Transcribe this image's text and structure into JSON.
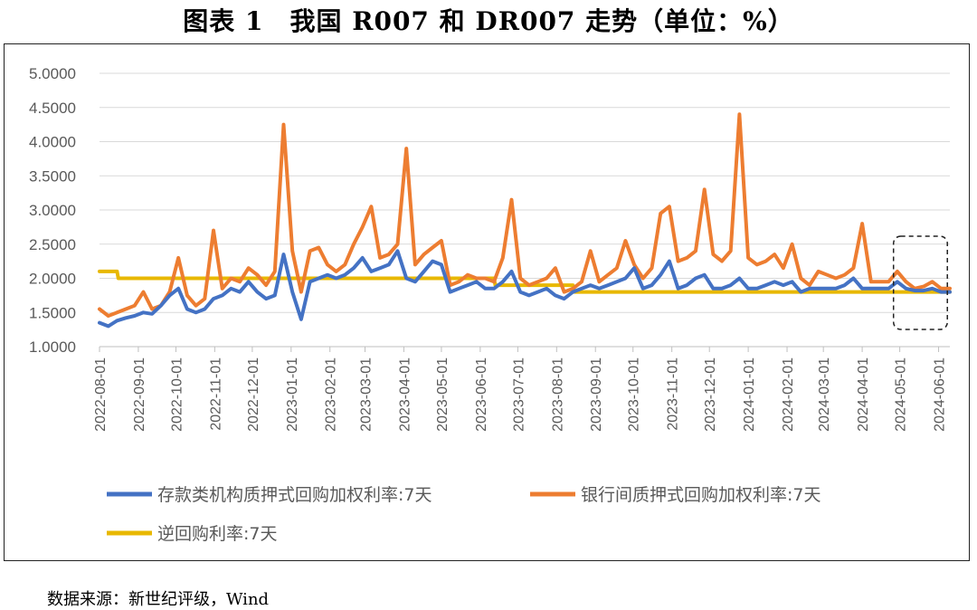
{
  "title": "图表 1　我国 R007 和 DR007 走势（单位：%）",
  "source": "数据来源：新世纪评级，Wind",
  "chart_data": {
    "type": "line",
    "ylim": [
      1.0,
      5.0
    ],
    "yticks": [
      "5.0000",
      "4.5000",
      "4.0000",
      "3.5000",
      "3.0000",
      "2.5000",
      "2.0000",
      "1.5000",
      "1.0000"
    ],
    "xticks": [
      "2022-08-01",
      "2022-09-01",
      "2022-10-01",
      "2022-11-01",
      "2022-12-01",
      "2023-01-01",
      "2023-02-01",
      "2023-03-01",
      "2023-04-01",
      "2023-05-01",
      "2023-06-01",
      "2023-07-01",
      "2023-08-01",
      "2023-09-01",
      "2023-10-01",
      "2023-11-01",
      "2023-12-01",
      "2024-01-01",
      "2024-02-01",
      "2024-03-01",
      "2024-04-01",
      "2024-05-01",
      "2024-06-01"
    ],
    "grid": "horizontal",
    "legend_position": "bottom",
    "annotation": "dashed box around 2024-05 to 2024-06",
    "series": [
      {
        "name": "存款类机构质押式回购加权利率:7天",
        "color": "#4472C4",
        "points": [
          [
            "2022-08-01",
            1.35
          ],
          [
            "2022-08-08",
            1.3
          ],
          [
            "2022-08-15",
            1.38
          ],
          [
            "2022-08-22",
            1.42
          ],
          [
            "2022-08-29",
            1.45
          ],
          [
            "2022-09-05",
            1.5
          ],
          [
            "2022-09-12",
            1.48
          ],
          [
            "2022-09-19",
            1.6
          ],
          [
            "2022-09-26",
            1.75
          ],
          [
            "2022-10-03",
            1.85
          ],
          [
            "2022-10-10",
            1.55
          ],
          [
            "2022-10-17",
            1.5
          ],
          [
            "2022-10-24",
            1.55
          ],
          [
            "2022-10-31",
            1.7
          ],
          [
            "2022-11-07",
            1.75
          ],
          [
            "2022-11-14",
            1.85
          ],
          [
            "2022-11-21",
            1.8
          ],
          [
            "2022-11-28",
            1.95
          ],
          [
            "2022-12-05",
            1.8
          ],
          [
            "2022-12-12",
            1.7
          ],
          [
            "2022-12-19",
            1.75
          ],
          [
            "2022-12-26",
            2.35
          ],
          [
            "2023-01-02",
            1.8
          ],
          [
            "2023-01-09",
            1.4
          ],
          [
            "2023-01-16",
            1.95
          ],
          [
            "2023-01-23",
            2.0
          ],
          [
            "2023-01-30",
            2.05
          ],
          [
            "2023-02-06",
            2.0
          ],
          [
            "2023-02-13",
            2.05
          ],
          [
            "2023-02-20",
            2.15
          ],
          [
            "2023-02-27",
            2.3
          ],
          [
            "2023-03-06",
            2.1
          ],
          [
            "2023-03-13",
            2.15
          ],
          [
            "2023-03-20",
            2.2
          ],
          [
            "2023-03-27",
            2.4
          ],
          [
            "2023-04-03",
            2.0
          ],
          [
            "2023-04-10",
            1.95
          ],
          [
            "2023-04-17",
            2.1
          ],
          [
            "2023-04-24",
            2.25
          ],
          [
            "2023-05-01",
            2.2
          ],
          [
            "2023-05-08",
            1.8
          ],
          [
            "2023-05-15",
            1.85
          ],
          [
            "2023-05-22",
            1.9
          ],
          [
            "2023-05-29",
            1.95
          ],
          [
            "2023-06-05",
            1.85
          ],
          [
            "2023-06-12",
            1.85
          ],
          [
            "2023-06-19",
            1.95
          ],
          [
            "2023-06-26",
            2.1
          ],
          [
            "2023-07-03",
            1.8
          ],
          [
            "2023-07-10",
            1.75
          ],
          [
            "2023-07-17",
            1.8
          ],
          [
            "2023-07-24",
            1.85
          ],
          [
            "2023-07-31",
            1.75
          ],
          [
            "2023-08-07",
            1.7
          ],
          [
            "2023-08-14",
            1.8
          ],
          [
            "2023-08-21",
            1.85
          ],
          [
            "2023-08-28",
            1.9
          ],
          [
            "2023-09-04",
            1.85
          ],
          [
            "2023-09-11",
            1.9
          ],
          [
            "2023-09-18",
            1.95
          ],
          [
            "2023-09-25",
            2.0
          ],
          [
            "2023-10-02",
            2.15
          ],
          [
            "2023-10-09",
            1.85
          ],
          [
            "2023-10-16",
            1.9
          ],
          [
            "2023-10-23",
            2.05
          ],
          [
            "2023-10-30",
            2.25
          ],
          [
            "2023-11-06",
            1.85
          ],
          [
            "2023-11-13",
            1.9
          ],
          [
            "2023-11-20",
            2.0
          ],
          [
            "2023-11-27",
            2.05
          ],
          [
            "2023-12-04",
            1.85
          ],
          [
            "2023-12-11",
            1.85
          ],
          [
            "2023-12-18",
            1.9
          ],
          [
            "2023-12-25",
            2.0
          ],
          [
            "2024-01-01",
            1.85
          ],
          [
            "2024-01-08",
            1.85
          ],
          [
            "2024-01-15",
            1.9
          ],
          [
            "2024-01-22",
            1.95
          ],
          [
            "2024-01-29",
            1.9
          ],
          [
            "2024-02-05",
            1.95
          ],
          [
            "2024-02-12",
            1.8
          ],
          [
            "2024-02-19",
            1.85
          ],
          [
            "2024-02-26",
            1.85
          ],
          [
            "2024-03-04",
            1.85
          ],
          [
            "2024-03-11",
            1.85
          ],
          [
            "2024-03-18",
            1.9
          ],
          [
            "2024-03-25",
            2.0
          ],
          [
            "2024-04-01",
            1.85
          ],
          [
            "2024-04-08",
            1.85
          ],
          [
            "2024-04-15",
            1.85
          ],
          [
            "2024-04-22",
            1.85
          ],
          [
            "2024-04-29",
            1.95
          ],
          [
            "2024-05-06",
            1.85
          ],
          [
            "2024-05-13",
            1.82
          ],
          [
            "2024-05-20",
            1.82
          ],
          [
            "2024-05-27",
            1.85
          ],
          [
            "2024-06-03",
            1.8
          ],
          [
            "2024-06-10",
            1.8
          ]
        ]
      },
      {
        "name": "银行间质押式回购加权利率:7天",
        "color": "#ED7D31",
        "points": [
          [
            "2022-08-01",
            1.55
          ],
          [
            "2022-08-08",
            1.45
          ],
          [
            "2022-08-15",
            1.5
          ],
          [
            "2022-08-22",
            1.55
          ],
          [
            "2022-08-29",
            1.6
          ],
          [
            "2022-09-05",
            1.8
          ],
          [
            "2022-09-12",
            1.55
          ],
          [
            "2022-09-19",
            1.6
          ],
          [
            "2022-09-26",
            1.8
          ],
          [
            "2022-10-03",
            2.3
          ],
          [
            "2022-10-10",
            1.75
          ],
          [
            "2022-10-17",
            1.6
          ],
          [
            "2022-10-24",
            1.7
          ],
          [
            "2022-10-31",
            2.7
          ],
          [
            "2022-11-07",
            1.85
          ],
          [
            "2022-11-14",
            2.0
          ],
          [
            "2022-11-21",
            1.95
          ],
          [
            "2022-11-28",
            2.15
          ],
          [
            "2022-12-05",
            2.05
          ],
          [
            "2022-12-12",
            1.9
          ],
          [
            "2022-12-19",
            2.1
          ],
          [
            "2022-12-26",
            4.25
          ],
          [
            "2023-01-02",
            2.4
          ],
          [
            "2023-01-09",
            1.8
          ],
          [
            "2023-01-16",
            2.4
          ],
          [
            "2023-01-23",
            2.45
          ],
          [
            "2023-01-30",
            2.2
          ],
          [
            "2023-02-06",
            2.1
          ],
          [
            "2023-02-13",
            2.2
          ],
          [
            "2023-02-20",
            2.5
          ],
          [
            "2023-02-27",
            2.75
          ],
          [
            "2023-03-06",
            3.05
          ],
          [
            "2023-03-13",
            2.3
          ],
          [
            "2023-03-20",
            2.35
          ],
          [
            "2023-03-27",
            2.5
          ],
          [
            "2023-04-03",
            3.9
          ],
          [
            "2023-04-10",
            2.2
          ],
          [
            "2023-04-17",
            2.35
          ],
          [
            "2023-04-24",
            2.45
          ],
          [
            "2023-05-01",
            2.55
          ],
          [
            "2023-05-08",
            1.9
          ],
          [
            "2023-05-15",
            1.95
          ],
          [
            "2023-05-22",
            2.05
          ],
          [
            "2023-05-29",
            2.0
          ],
          [
            "2023-06-05",
            2.0
          ],
          [
            "2023-06-12",
            1.95
          ],
          [
            "2023-06-19",
            2.3
          ],
          [
            "2023-06-26",
            3.15
          ],
          [
            "2023-07-03",
            2.0
          ],
          [
            "2023-07-10",
            1.9
          ],
          [
            "2023-07-17",
            1.95
          ],
          [
            "2023-07-24",
            2.0
          ],
          [
            "2023-07-31",
            2.15
          ],
          [
            "2023-08-07",
            1.8
          ],
          [
            "2023-08-14",
            1.85
          ],
          [
            "2023-08-21",
            1.95
          ],
          [
            "2023-08-28",
            2.4
          ],
          [
            "2023-09-04",
            1.95
          ],
          [
            "2023-09-11",
            2.05
          ],
          [
            "2023-09-18",
            2.15
          ],
          [
            "2023-09-25",
            2.55
          ],
          [
            "2023-10-02",
            2.2
          ],
          [
            "2023-10-09",
            2.0
          ],
          [
            "2023-10-16",
            2.15
          ],
          [
            "2023-10-23",
            2.95
          ],
          [
            "2023-10-30",
            3.05
          ],
          [
            "2023-11-06",
            2.25
          ],
          [
            "2023-11-13",
            2.3
          ],
          [
            "2023-11-20",
            2.4
          ],
          [
            "2023-11-27",
            3.3
          ],
          [
            "2023-12-04",
            2.35
          ],
          [
            "2023-12-11",
            2.25
          ],
          [
            "2023-12-18",
            2.4
          ],
          [
            "2023-12-25",
            4.4
          ],
          [
            "2024-01-01",
            2.3
          ],
          [
            "2024-01-08",
            2.2
          ],
          [
            "2024-01-15",
            2.25
          ],
          [
            "2024-01-22",
            2.35
          ],
          [
            "2024-01-29",
            2.15
          ],
          [
            "2024-02-05",
            2.5
          ],
          [
            "2024-02-12",
            2.0
          ],
          [
            "2024-02-19",
            1.9
          ],
          [
            "2024-02-26",
            2.1
          ],
          [
            "2024-03-04",
            2.05
          ],
          [
            "2024-03-11",
            2.0
          ],
          [
            "2024-03-18",
            2.05
          ],
          [
            "2024-03-25",
            2.15
          ],
          [
            "2024-04-01",
            2.8
          ],
          [
            "2024-04-08",
            1.95
          ],
          [
            "2024-04-15",
            1.95
          ],
          [
            "2024-04-22",
            1.95
          ],
          [
            "2024-04-29",
            2.1
          ],
          [
            "2024-05-06",
            1.95
          ],
          [
            "2024-05-13",
            1.85
          ],
          [
            "2024-05-20",
            1.88
          ],
          [
            "2024-05-27",
            1.95
          ],
          [
            "2024-06-03",
            1.85
          ],
          [
            "2024-06-10",
            1.85
          ]
        ]
      },
      {
        "name": "逆回购利率:7天",
        "color": "#E8B800",
        "points": [
          [
            "2022-08-01",
            2.1
          ],
          [
            "2022-08-15",
            2.1
          ],
          [
            "2022-08-16",
            2.0
          ],
          [
            "2023-06-12",
            2.0
          ],
          [
            "2023-06-13",
            1.9
          ],
          [
            "2023-08-14",
            1.9
          ],
          [
            "2023-08-15",
            1.8
          ],
          [
            "2024-06-10",
            1.8
          ]
        ]
      }
    ]
  }
}
